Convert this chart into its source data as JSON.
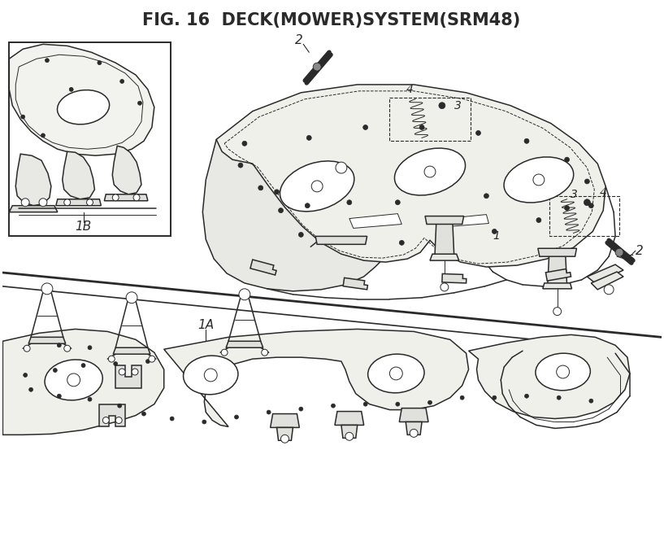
{
  "title": "FIG. 16  DECK(MOWER)SYSTEM(SRM48)",
  "title_fontsize": 15,
  "title_fontweight": "bold",
  "bg_color": "#ffffff",
  "line_color": "#2a2a2a",
  "fig_width": 8.17,
  "fig_height": 6.71,
  "dpi": 100
}
